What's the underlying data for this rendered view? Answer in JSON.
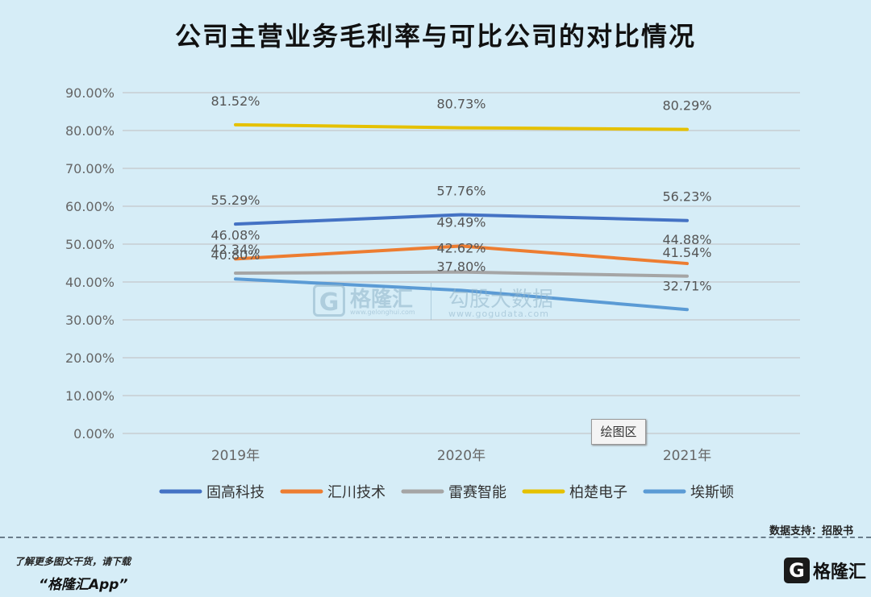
{
  "chart_data": {
    "type": "line",
    "title": "公司主营业务毛利率与可比公司的对比情况",
    "categories": [
      "2019年",
      "2020年",
      "2021年"
    ],
    "ylim": [
      0,
      90
    ],
    "y_ticks": [
      "0.00%",
      "10.00%",
      "20.00%",
      "30.00%",
      "40.00%",
      "50.00%",
      "60.00%",
      "70.00%",
      "80.00%",
      "90.00%"
    ],
    "grid": true,
    "legend_position": "bottom",
    "series": [
      {
        "name": "固高科技",
        "color": "#4472c4",
        "values": [
          55.29,
          57.76,
          56.23
        ],
        "labels": [
          "55.29%",
          "57.76%",
          "56.23%"
        ]
      },
      {
        "name": "汇川技术",
        "color": "#ed7d31",
        "values": [
          46.08,
          49.49,
          44.88
        ],
        "labels": [
          "46.08%",
          "49.49%",
          "44.88%"
        ]
      },
      {
        "name": "雷赛智能",
        "color": "#a5a5a5",
        "values": [
          42.34,
          42.62,
          41.54
        ],
        "labels": [
          "42.34%",
          "42.62%",
          "41.54%"
        ]
      },
      {
        "name": "柏楚电子",
        "color": "#e5c100",
        "values": [
          81.52,
          80.73,
          80.29
        ],
        "labels": [
          "81.52%",
          "80.73%",
          "80.29%"
        ]
      },
      {
        "name": "埃斯顿",
        "color": "#5b9bd5",
        "values": [
          40.8,
          37.8,
          32.71
        ],
        "labels": [
          "40.80%",
          "37.80%",
          "32.71%"
        ]
      }
    ]
  },
  "plot_area_label": "绘图区",
  "watermark": {
    "logo_glyph": "G",
    "brand": "格隆汇",
    "brand_url": "www.gelonghui.com",
    "text": "勾股大数据",
    "url": "www.gogudata.com"
  },
  "footer": {
    "data_source": "数据支持：招股书",
    "note": "了解更多图文干货，请下载",
    "app": "“格隆汇App”",
    "logo_glyph": "G",
    "brand": "格隆汇"
  }
}
